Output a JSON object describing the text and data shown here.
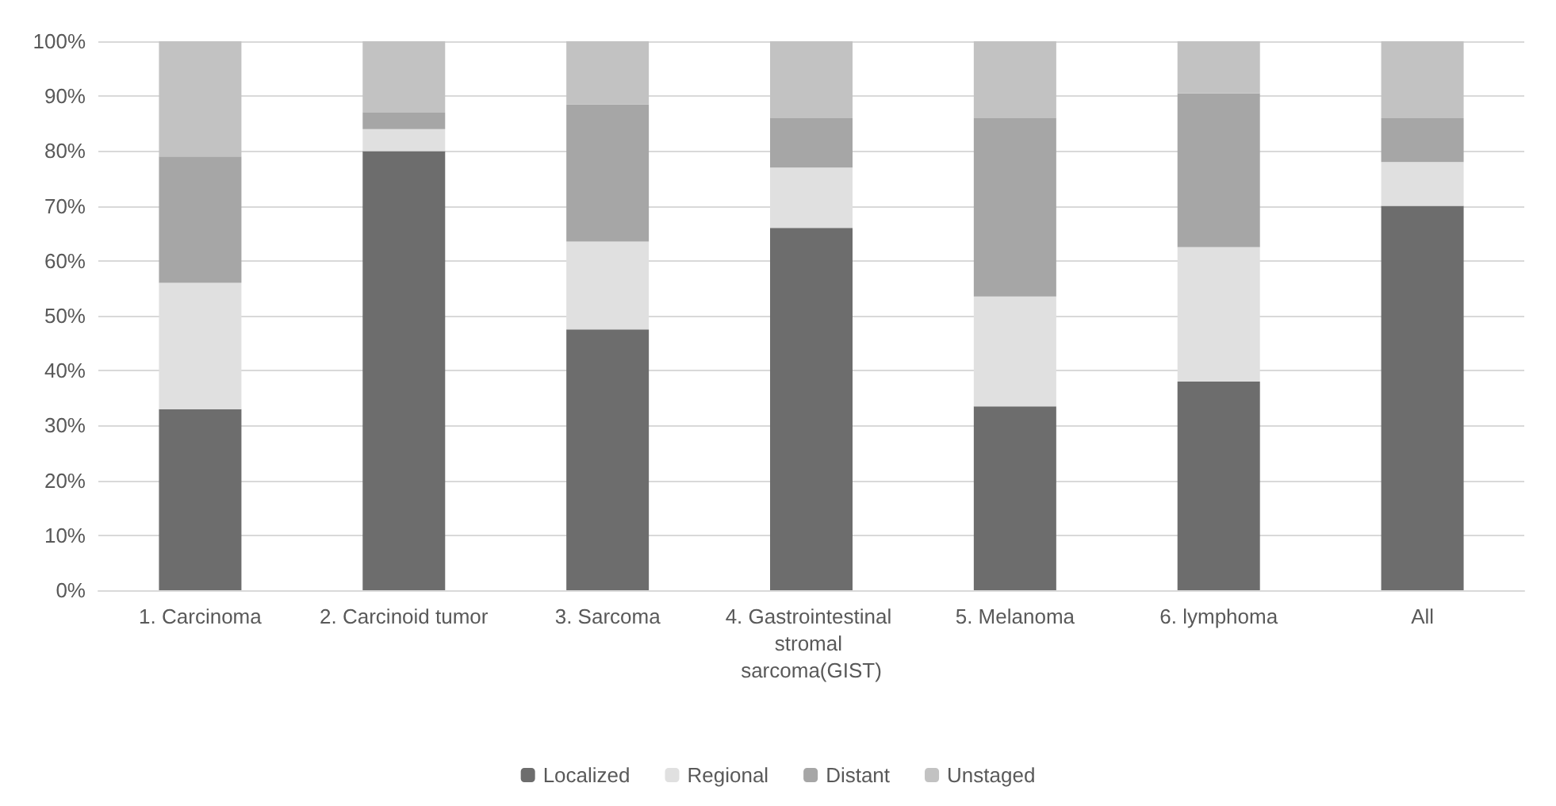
{
  "chart_data": {
    "type": "bar",
    "stacked": true,
    "categories": [
      "1. Carcinoma",
      "2. Carcinoid tumor",
      "3. Sarcoma",
      "4. Gastrointestinal stromal sarcoma(GIST)",
      "5. Melanoma",
      "6. lymphoma",
      "All"
    ],
    "series": [
      {
        "name": "Localized",
        "color": "#6d6d6d",
        "values": [
          33,
          80,
          47.5,
          66,
          33.5,
          38,
          70
        ]
      },
      {
        "name": "Regional",
        "color": "#e0e0e0",
        "values": [
          23,
          4,
          16,
          11,
          20,
          24.5,
          8
        ]
      },
      {
        "name": "Distant",
        "color": "#a6a6a6",
        "values": [
          23,
          3,
          25,
          9,
          32.5,
          28,
          8
        ]
      },
      {
        "name": "Unstaged",
        "color": "#c2c2c2",
        "values": [
          21,
          13,
          11.5,
          14,
          14,
          9.5,
          14
        ]
      }
    ],
    "ylim": [
      0,
      100
    ],
    "yticks": [
      {
        "value": 0,
        "label": "0%"
      },
      {
        "value": 10,
        "label": "10%"
      },
      {
        "value": 20,
        "label": "20%"
      },
      {
        "value": 30,
        "label": "30%"
      },
      {
        "value": 40,
        "label": "40%"
      },
      {
        "value": 50,
        "label": "50%"
      },
      {
        "value": 60,
        "label": "60%"
      },
      {
        "value": 70,
        "label": "70%"
      },
      {
        "value": 80,
        "label": "80%"
      },
      {
        "value": 90,
        "label": "90%"
      },
      {
        "value": 100,
        "label": "100%"
      }
    ],
    "grid": "y",
    "legend": "bottom"
  }
}
